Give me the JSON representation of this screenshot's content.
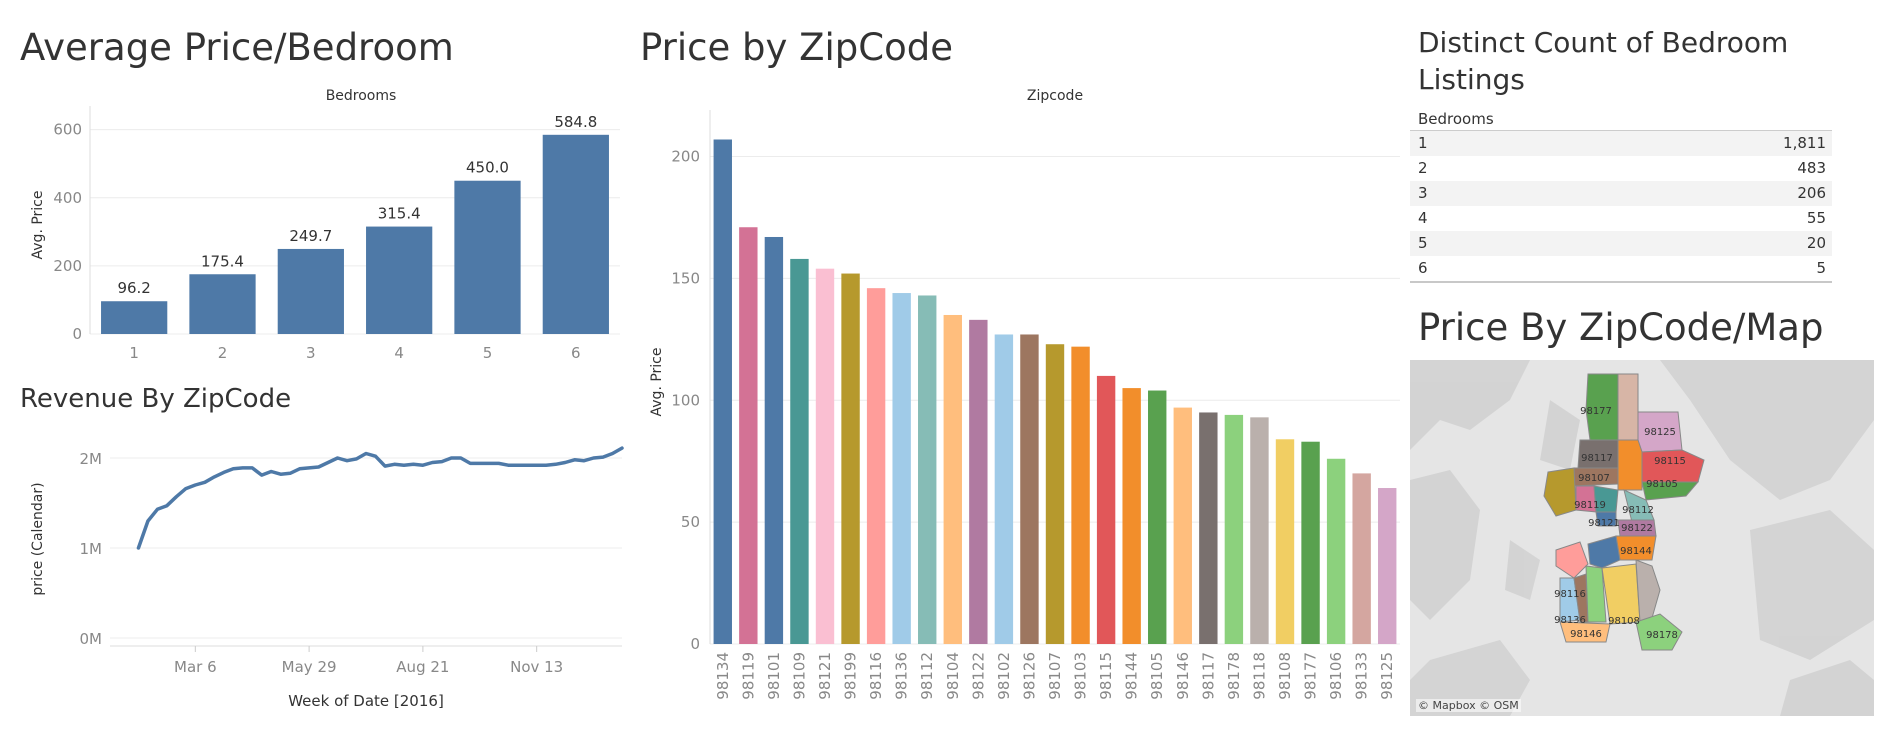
{
  "panels": {
    "avg_title": "Average Price/Bedroom",
    "zip_title": "Price by ZipCode",
    "revenue_title": "Revenue By ZipCode",
    "count_title": "Distinct Count of Bedroom Listings",
    "map_title": "Price By ZipCode/Map"
  },
  "table": {
    "header": "Bedrooms",
    "rows": [
      {
        "bedrooms": "1",
        "count": "1,811"
      },
      {
        "bedrooms": "2",
        "count": "483"
      },
      {
        "bedrooms": "3",
        "count": "206"
      },
      {
        "bedrooms": "4",
        "count": "55"
      },
      {
        "bedrooms": "5",
        "count": "20"
      },
      {
        "bedrooms": "6",
        "count": "5"
      }
    ]
  },
  "map": {
    "attribution": "© Mapbox © OSM",
    "labels": [
      "98177",
      "98125",
      "98117",
      "98115",
      "98107",
      "98105",
      "98119",
      "98112",
      "98122",
      "98144",
      "98116",
      "98136",
      "98108",
      "98146",
      "98178",
      "98121"
    ]
  },
  "colors": {
    "primary": "#4e79a7",
    "grid": "#ececec",
    "axis": "#888888"
  },
  "chart_data": [
    {
      "type": "bar",
      "title": "Average Price/Bedroom",
      "header": "Bedrooms",
      "xlabel": "",
      "ylabel": "Avg. Price",
      "categories": [
        "1",
        "2",
        "3",
        "4",
        "5",
        "6"
      ],
      "values": [
        96.2,
        175.4,
        249.7,
        315.4,
        450.0,
        584.8
      ],
      "value_labels": [
        "96.2",
        "175.4",
        "249.7",
        "315.4",
        "450.0",
        "584.8"
      ],
      "yticks": [
        0,
        200,
        400,
        600
      ],
      "ylim": [
        0,
        640
      ]
    },
    {
      "type": "bar",
      "title": "Price by ZipCode",
      "header": "Zipcode",
      "ylabel": "Avg. Price",
      "categories": [
        "98134",
        "98119",
        "98101",
        "98109",
        "98121",
        "98199",
        "98116",
        "98136",
        "98112",
        "98104",
        "98122",
        "98102",
        "98126",
        "98107",
        "98103",
        "98115",
        "98144",
        "98105",
        "98146",
        "98117",
        "98178",
        "98118",
        "98108",
        "98177",
        "98106",
        "98133",
        "98125"
      ],
      "values": [
        207,
        171,
        167,
        158,
        154,
        152,
        146,
        144,
        143,
        135,
        133,
        127,
        127,
        123,
        122,
        110,
        105,
        104,
        97,
        95,
        94,
        93,
        84,
        83,
        76,
        70,
        64
      ],
      "colors": [
        "#4e79a7",
        "#d37295",
        "#4e79a7",
        "#499894",
        "#fabfd2",
        "#b6992d",
        "#ff9d9a",
        "#a0cbe8",
        "#86bcb6",
        "#ffbe7d",
        "#b07aa1",
        "#a0cbe8",
        "#9d7660",
        "#b6992d",
        "#f28e2b",
        "#e15759",
        "#f28e2b",
        "#59a14f",
        "#ffbe7d",
        "#79706e",
        "#8cd17d",
        "#bab0ac",
        "#f1ce63",
        "#59a14f",
        "#8cd17d",
        "#d4a6a0",
        "#d4a6c8"
      ],
      "yticks": [
        0,
        50,
        100,
        150,
        200
      ],
      "ylim": [
        0,
        215
      ]
    },
    {
      "type": "line",
      "title": "Revenue By ZipCode",
      "xlabel": "Week of Date [2016]",
      "ylabel": "price (Calendar)",
      "x_week": [
        0,
        1,
        2,
        3,
        4,
        5,
        6,
        7,
        8,
        9,
        10,
        11,
        12,
        13,
        14,
        15,
        16,
        17,
        18,
        19,
        20,
        21,
        22,
        23,
        24,
        25,
        26,
        27,
        28,
        29,
        30,
        31,
        32,
        33,
        34,
        35,
        36,
        37,
        38,
        39,
        40,
        41,
        42,
        43,
        44,
        45,
        46,
        47,
        48,
        49,
        50,
        51
      ],
      "values": [
        1.0,
        1.3,
        1.43,
        1.47,
        1.57,
        1.66,
        1.7,
        1.73,
        1.79,
        1.84,
        1.88,
        1.89,
        1.89,
        1.81,
        1.85,
        1.82,
        1.83,
        1.88,
        1.89,
        1.9,
        1.95,
        2.0,
        1.97,
        1.99,
        2.05,
        2.02,
        1.91,
        1.93,
        1.92,
        1.93,
        1.92,
        1.95,
        1.96,
        2.0,
        2.0,
        1.94,
        1.94,
        1.94,
        1.94,
        1.92,
        1.92,
        1.92,
        1.92,
        1.92,
        1.93,
        1.95,
        1.98,
        1.97,
        2.0,
        2.01,
        2.05,
        2.11
      ],
      "xtick_weeks": [
        9,
        21,
        33,
        45
      ],
      "xtick_labels": [
        "Mar 6",
        "May 29",
        "Aug 21",
        "Nov 13"
      ],
      "yticks": [
        0,
        1,
        2
      ],
      "ytick_labels": [
        "0M",
        "1M",
        "2M"
      ],
      "ylim": [
        0,
        2.2
      ]
    }
  ]
}
